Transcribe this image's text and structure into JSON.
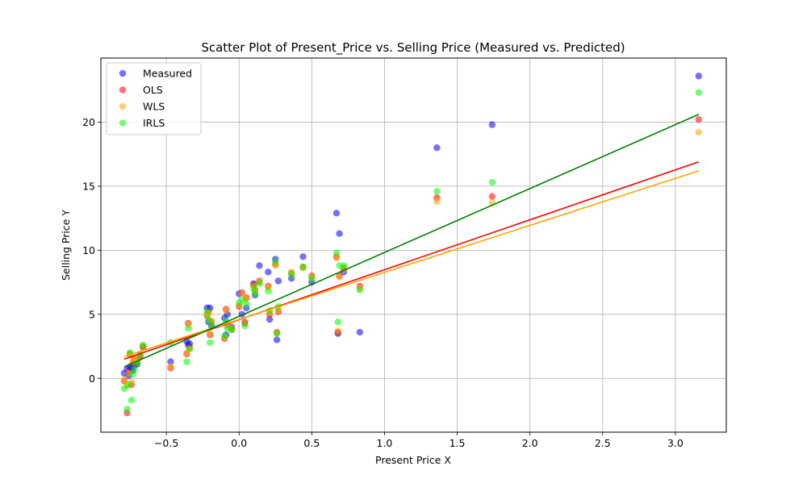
{
  "chart_data": {
    "type": "scatter",
    "title": "Scatter Plot of Present_Price vs. Selling Price (Measured vs. Predicted)",
    "xlabel": "Present Price X",
    "ylabel": "Selling Price Y",
    "xlim": [
      -0.95,
      3.35
    ],
    "ylim": [
      -4.2,
      25
    ],
    "x_ticks": [
      -0.5,
      0.0,
      0.5,
      1.0,
      1.5,
      2.0,
      2.5,
      3.0
    ],
    "x_tick_labels": [
      "−0.5",
      "0.0",
      "0.5",
      "1.0",
      "1.5",
      "2.0",
      "2.5",
      "3.0"
    ],
    "y_ticks": [
      0,
      5,
      10,
      15,
      20
    ],
    "y_tick_labels": [
      "0",
      "5",
      "10",
      "15",
      "20"
    ],
    "grid": true,
    "legend_position": "top-left",
    "x": [
      -0.79,
      -0.77,
      -0.76,
      -0.75,
      -0.74,
      -0.73,
      -0.72,
      -0.7,
      -0.68,
      -0.66,
      -0.47,
      -0.36,
      -0.35,
      -0.34,
      -0.22,
      -0.21,
      -0.2,
      -0.19,
      -0.1,
      -0.09,
      -0.08,
      -0.05,
      0.0,
      0.02,
      0.04,
      0.05,
      0.1,
      0.11,
      0.14,
      0.2,
      0.21,
      0.25,
      0.26,
      0.27,
      0.36,
      0.44,
      0.5,
      0.67,
      0.68,
      0.69,
      0.72,
      0.83,
      1.36,
      1.74,
      3.16
    ],
    "series": [
      {
        "name": "Measured",
        "color": "#0000ff",
        "values": [
          0.4,
          0.7,
          0.2,
          0.9,
          0.8,
          0.6,
          1.0,
          1.1,
          1.7,
          2.4,
          1.3,
          2.9,
          2.6,
          2.7,
          5.5,
          4.4,
          5.5,
          4.1,
          4.7,
          3.4,
          5.0,
          4.0,
          6.6,
          5.0,
          4.4,
          5.5,
          7.4,
          6.5,
          8.8,
          8.3,
          4.6,
          9.3,
          3.0,
          7.6,
          7.8,
          9.5,
          7.5,
          12.9,
          3.5,
          11.3,
          8.3,
          3.6,
          18.0,
          19.8,
          23.6
        ]
      },
      {
        "name": "OLS",
        "color": "#ff0000",
        "values": [
          -0.2,
          -2.7,
          0.5,
          1.9,
          -0.5,
          1.2,
          1.5,
          1.3,
          1.8,
          2.5,
          0.8,
          1.9,
          4.3,
          2.4,
          4.9,
          5.2,
          3.4,
          4.4,
          3.1,
          5.4,
          4.2,
          3.8,
          5.6,
          6.7,
          4.3,
          6.3,
          7.3,
          6.9,
          7.6,
          7.2,
          5.0,
          8.9,
          3.6,
          5.2,
          8.2,
          8.7,
          8.0,
          9.5,
          3.6,
          8.0,
          8.6,
          7.2,
          14.1,
          14.2,
          20.2
        ]
      },
      {
        "name": "WLS",
        "color": "#ffa500",
        "values": [
          -0.1,
          -0.6,
          0.4,
          1.8,
          -0.3,
          1.3,
          1.5,
          1.4,
          1.8,
          2.4,
          0.9,
          2.0,
          4.2,
          2.3,
          5.0,
          5.1,
          3.5,
          4.5,
          3.2,
          5.3,
          4.1,
          3.9,
          5.7,
          6.6,
          4.4,
          6.2,
          7.2,
          6.8,
          7.5,
          7.1,
          5.1,
          8.8,
          3.5,
          5.3,
          8.3,
          8.6,
          7.9,
          9.4,
          3.7,
          7.9,
          8.5,
          7.0,
          13.8,
          13.7,
          19.2
        ]
      },
      {
        "name": "IRLS",
        "color": "#00ff00",
        "values": [
          -0.8,
          -2.4,
          -0.5,
          2.0,
          -1.7,
          0.3,
          0.7,
          1.2,
          1.9,
          2.6,
          2.8,
          1.3,
          3.9,
          2.3,
          5.2,
          4.6,
          2.8,
          4.2,
          3.3,
          4.5,
          3.9,
          3.8,
          5.9,
          6.1,
          4.1,
          5.8,
          7.0,
          6.6,
          7.4,
          6.8,
          5.3,
          9.1,
          3.5,
          5.6,
          8.1,
          8.7,
          7.8,
          9.8,
          4.4,
          8.8,
          8.8,
          6.9,
          14.6,
          15.3,
          22.3
        ]
      }
    ],
    "fit_lines": [
      {
        "name": "OLS",
        "color": "#ff0000",
        "x": [
          -0.79,
          3.16
        ],
        "y": [
          1.5,
          16.9
        ]
      },
      {
        "name": "WLS",
        "color": "#ffa500",
        "x": [
          -0.79,
          3.16
        ],
        "y": [
          1.7,
          16.2
        ]
      },
      {
        "name": "IRLS",
        "color": "#008000",
        "x": [
          -0.79,
          3.16
        ],
        "y": [
          0.9,
          20.6
        ]
      }
    ]
  }
}
